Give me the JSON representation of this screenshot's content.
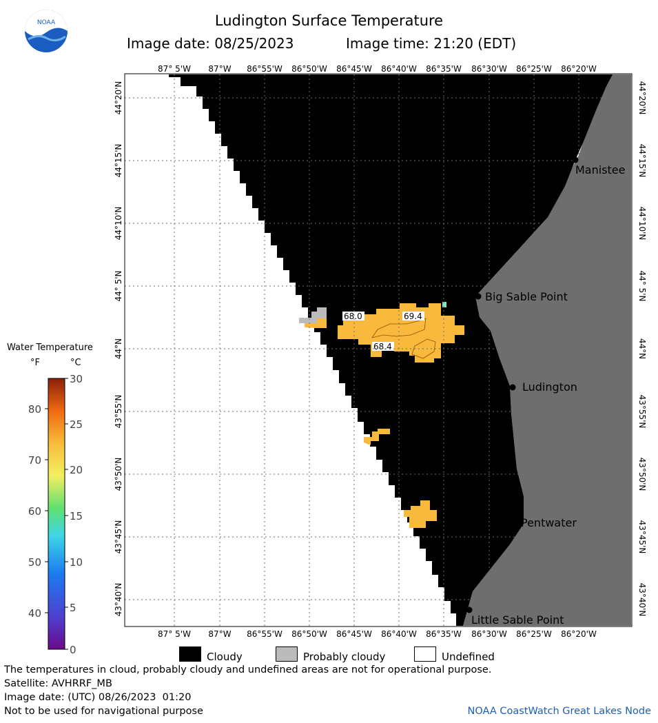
{
  "header": {
    "title": "Ludington Surface Temperature",
    "image_date": "Image date: 08/25/2023",
    "image_time": "Image time: 21:20 (EDT)"
  },
  "logo": {
    "text": "NOAA",
    "colors": {
      "blue": "#1a5cbf",
      "light": "#6fb2ea",
      "white": "#ffffff"
    }
  },
  "map": {
    "lon_labels": [
      "87° 5'W",
      "87°W",
      "86°55'W",
      "86°50'W",
      "86°45'W",
      "86°40'W",
      "86°35'W",
      "86°30'W",
      "86°25'W",
      "86°20'W"
    ],
    "lat_labels": [
      "44°20'N",
      "44°15'N",
      "44°10'N",
      "44° 5'N",
      "44°N",
      "43°55'N",
      "43°50'N",
      "43°45'N",
      "43°40'N"
    ],
    "cities": [
      "Manistee",
      "Big Sable Point",
      "Ludington",
      "Pentwater",
      "Little Sable Point"
    ],
    "contour_labels": [
      "68.0",
      "69.4",
      "68.4"
    ],
    "colors": {
      "cloudy": "#000000",
      "land": "#6e6e6e",
      "undefined": "#ffffff",
      "probably_cloudy": "#bbbbbb",
      "warm_water": "#f9b93c",
      "grid": "#6d6d6d"
    }
  },
  "legend": {
    "title": "Water Temperature",
    "unit_f": "°F",
    "unit_c": "°C",
    "f_ticks": [
      "80",
      "70",
      "60",
      "50",
      "40"
    ],
    "c_ticks": [
      "30",
      "25",
      "20",
      "15",
      "10",
      "5",
      "0"
    ]
  },
  "key": {
    "cloudy": "Cloudy",
    "probably_cloudy": "Probably cloudy",
    "undefined": "Undefined"
  },
  "footer": {
    "note": "The temperatures in cloud, probably cloudy and undefined areas are not for operational purpose.",
    "satellite": "Satellite: AVHRRF_MB",
    "utc_date": "Image date: (UTC) 08/26/2023  01:20",
    "nav_warning": "Not to be used for navigational purpose",
    "credit": "NOAA CoastWatch Great Lakes Node"
  }
}
